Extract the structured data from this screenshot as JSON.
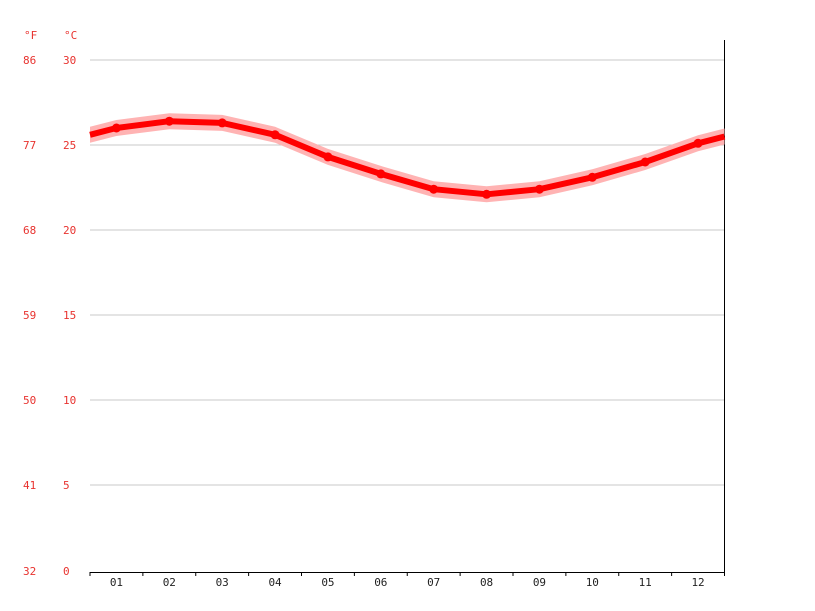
{
  "chart_data": {
    "type": "line",
    "unit_left": "°F",
    "unit_right": "°C",
    "categories": [
      "01",
      "02",
      "03",
      "04",
      "05",
      "06",
      "07",
      "08",
      "09",
      "10",
      "11",
      "12"
    ],
    "y_ticks_c": [
      "0",
      "5",
      "10",
      "15",
      "20",
      "25",
      "30"
    ],
    "y_ticks_f": [
      "32",
      "41",
      "50",
      "59",
      "68",
      "77",
      "86"
    ],
    "ylim": [
      0,
      30
    ],
    "grid": true,
    "series": [
      {
        "values": [
          26.0,
          26.4,
          26.3,
          25.6,
          24.3,
          23.3,
          22.4,
          22.1,
          22.4,
          23.1,
          24.0,
          25.1
        ],
        "color": "#ff0000",
        "band_color": "#ffb3b3"
      }
    ],
    "edge_values": {
      "start": 25.6,
      "end": 25.5
    }
  }
}
